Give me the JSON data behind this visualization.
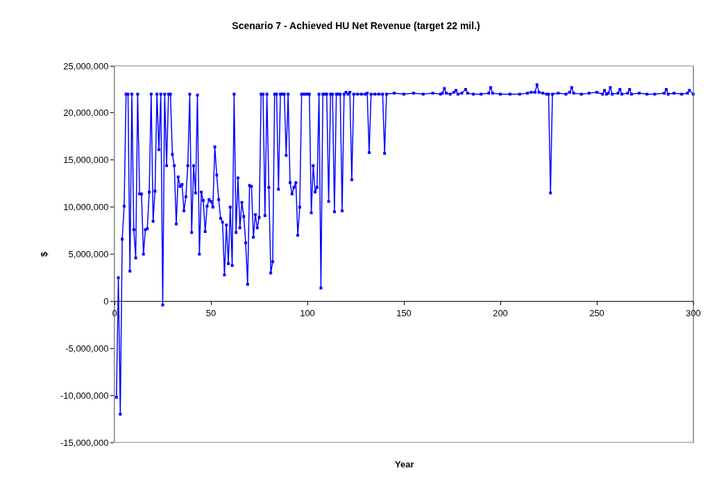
{
  "chart_data": {
    "type": "line",
    "title": "Scenario 7 - Achieved HU Net Revenue (target 22 mil.)",
    "xlabel": "Year",
    "ylabel": "$",
    "xlim": [
      0,
      300
    ],
    "xticks": [
      0,
      50,
      100,
      150,
      200,
      250,
      300
    ],
    "ylim": [
      -15000000,
      25000000
    ],
    "yticks": [
      {
        "value": -15000000,
        "label": "-15,000,000"
      },
      {
        "value": -10000000,
        "label": "-10,000,000"
      },
      {
        "value": -5000000,
        "label": "-5,000,000"
      },
      {
        "value": 0,
        "label": "0"
      },
      {
        "value": 5000000,
        "label": "5,000,000"
      },
      {
        "value": 10000000,
        "label": "10,000,000"
      },
      {
        "value": 15000000,
        "label": "15,000,000"
      },
      {
        "value": 20000000,
        "label": "20,000,000"
      },
      {
        "value": 25000000,
        "label": "25,000,000"
      }
    ],
    "grid": false,
    "marker": "square",
    "line_style": "solid",
    "series": [
      {
        "color": "#0000ff",
        "x": [
          1,
          2,
          3,
          4,
          5,
          6,
          7,
          8,
          9,
          10,
          11,
          12,
          13,
          14,
          15,
          16,
          17,
          18,
          19,
          20,
          21,
          22,
          23,
          24,
          25,
          26,
          27,
          28,
          29,
          30,
          31,
          32,
          33,
          34,
          35,
          36,
          37,
          38,
          39,
          40,
          41,
          42,
          43,
          44,
          45,
          46,
          47,
          48,
          49,
          50,
          51,
          52,
          53,
          54,
          55,
          56,
          57,
          58,
          59,
          60,
          61,
          62,
          63,
          64,
          65,
          66,
          67,
          68,
          69,
          70,
          71,
          72,
          73,
          74,
          75,
          76,
          77,
          78,
          79,
          80,
          81,
          82,
          83,
          84,
          85,
          86,
          87,
          88,
          89,
          90,
          91,
          92,
          93,
          94,
          95,
          96,
          97,
          98,
          99,
          100,
          101,
          102,
          103,
          104,
          105,
          106,
          107,
          108,
          109,
          110,
          111,
          112,
          113,
          114,
          115,
          116,
          117,
          118,
          119,
          120,
          121,
          122,
          123,
          124,
          126,
          128,
          130,
          131,
          132,
          133,
          135,
          137,
          139,
          140,
          141,
          145,
          150,
          155,
          160,
          165,
          169,
          170,
          171,
          172,
          174,
          176,
          177,
          178,
          180,
          182,
          183,
          186,
          190,
          194,
          195,
          196,
          200,
          205,
          210,
          214,
          216,
          218,
          219,
          220,
          222,
          224,
          225,
          226,
          227,
          230,
          234,
          236,
          237,
          238,
          242,
          246,
          250,
          253,
          254,
          255,
          256,
          257,
          258,
          261,
          262,
          263,
          266,
          267,
          268,
          272,
          276,
          280,
          285,
          286,
          287,
          290,
          294,
          297,
          298,
          300
        ],
        "values": [
          -10200000,
          2500000,
          -12000000,
          6600000,
          10100000,
          22000000,
          22000000,
          3200000,
          22000000,
          7600000,
          4600000,
          22000000,
          11400000,
          11400000,
          5000000,
          7600000,
          7700000,
          11600000,
          22000000,
          8500000,
          11700000,
          22000000,
          16100000,
          22000000,
          -400000,
          22000000,
          14400000,
          22000000,
          22000000,
          15600000,
          14400000,
          8200000,
          13200000,
          12200000,
          12400000,
          9600000,
          11100000,
          14400000,
          22000000,
          7300000,
          14400000,
          11500000,
          21900000,
          5000000,
          11600000,
          10700000,
          7400000,
          10100000,
          10800000,
          10600000,
          10000000,
          16400000,
          13400000,
          10800000,
          8800000,
          8400000,
          2800000,
          8100000,
          4000000,
          10000000,
          3800000,
          22000000,
          7300000,
          13100000,
          7800000,
          10500000,
          9000000,
          6200000,
          1800000,
          12300000,
          12200000,
          6800000,
          9200000,
          7800000,
          8900000,
          22000000,
          22000000,
          9100000,
          22000000,
          12100000,
          3000000,
          4200000,
          22000000,
          22000000,
          11900000,
          22000000,
          22000000,
          22000000,
          15500000,
          22000000,
          12600000,
          11400000,
          12100000,
          12600000,
          7000000,
          10000000,
          22000000,
          22000000,
          22000000,
          22000000,
          22000000,
          9400000,
          14400000,
          11600000,
          12100000,
          22000000,
          1400000,
          22000000,
          22000000,
          22000000,
          10600000,
          22000000,
          22000000,
          9500000,
          22000000,
          22000000,
          22000000,
          9600000,
          22000000,
          22200000,
          22000000,
          22200000,
          12900000,
          22000000,
          22000000,
          22000000,
          22000000,
          22100000,
          15800000,
          22000000,
          22000000,
          22000000,
          22000000,
          15700000,
          22000000,
          22100000,
          22000000,
          22100000,
          22000000,
          22100000,
          22000000,
          22100000,
          22600000,
          22100000,
          22000000,
          22200000,
          22400000,
          22000000,
          22100000,
          22500000,
          22100000,
          22000000,
          22000000,
          22100000,
          22700000,
          22100000,
          22000000,
          22000000,
          22000000,
          22100000,
          22200000,
          22200000,
          23000000,
          22200000,
          22100000,
          22000000,
          22000000,
          11500000,
          22000000,
          22100000,
          22000000,
          22200000,
          22700000,
          22100000,
          22000000,
          22100000,
          22200000,
          22000000,
          22400000,
          22000000,
          22100000,
          22700000,
          22000000,
          22100000,
          22500000,
          22000000,
          22100000,
          22500000,
          22000000,
          22100000,
          22000000,
          22000000,
          22100000,
          22500000,
          22000000,
          22100000,
          22000000,
          22100000,
          22400000,
          22000000
        ]
      }
    ]
  }
}
